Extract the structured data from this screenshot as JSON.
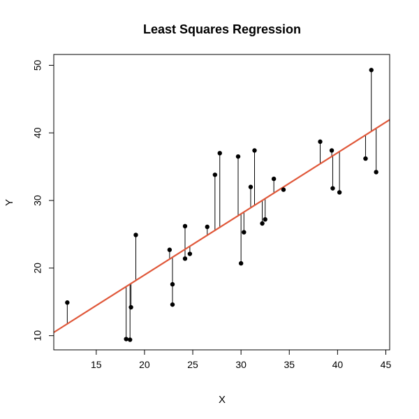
{
  "chart_data": {
    "type": "scatter",
    "title": "Least Squares Regression",
    "xlabel": "X",
    "ylabel": "Y",
    "xlim": [
      10.6,
      45.4
    ],
    "ylim": [
      7.9,
      51.6
    ],
    "x_ticks": [
      15,
      20,
      25,
      30,
      35,
      40,
      45
    ],
    "y_ticks": [
      10,
      20,
      30,
      40,
      50
    ],
    "grid": false,
    "regression": {
      "intercept": 0.9,
      "slope": 0.904,
      "color": "#e0583a"
    },
    "point_color": "#000000",
    "residual_color": "#000000",
    "points": [
      {
        "x": 12.0,
        "y": 14.9
      },
      {
        "x": 18.1,
        "y": 9.5
      },
      {
        "x": 18.5,
        "y": 9.4
      },
      {
        "x": 18.6,
        "y": 14.2
      },
      {
        "x": 19.1,
        "y": 24.9
      },
      {
        "x": 22.6,
        "y": 22.7
      },
      {
        "x": 22.9,
        "y": 17.6
      },
      {
        "x": 22.9,
        "y": 14.6
      },
      {
        "x": 24.2,
        "y": 21.4
      },
      {
        "x": 24.2,
        "y": 26.2
      },
      {
        "x": 24.7,
        "y": 22.1
      },
      {
        "x": 26.5,
        "y": 26.1
      },
      {
        "x": 27.3,
        "y": 33.8
      },
      {
        "x": 27.8,
        "y": 37.0
      },
      {
        "x": 29.7,
        "y": 36.5
      },
      {
        "x": 30.0,
        "y": 20.7
      },
      {
        "x": 30.3,
        "y": 25.3
      },
      {
        "x": 31.0,
        "y": 32.0
      },
      {
        "x": 31.4,
        "y": 37.4
      },
      {
        "x": 32.2,
        "y": 26.6
      },
      {
        "x": 32.5,
        "y": 27.2
      },
      {
        "x": 33.4,
        "y": 33.2
      },
      {
        "x": 34.4,
        "y": 31.6
      },
      {
        "x": 38.2,
        "y": 38.7
      },
      {
        "x": 39.4,
        "y": 37.4
      },
      {
        "x": 39.5,
        "y": 31.8
      },
      {
        "x": 40.2,
        "y": 31.2
      },
      {
        "x": 42.9,
        "y": 36.2
      },
      {
        "x": 43.5,
        "y": 49.3
      },
      {
        "x": 44.0,
        "y": 34.2
      }
    ]
  }
}
